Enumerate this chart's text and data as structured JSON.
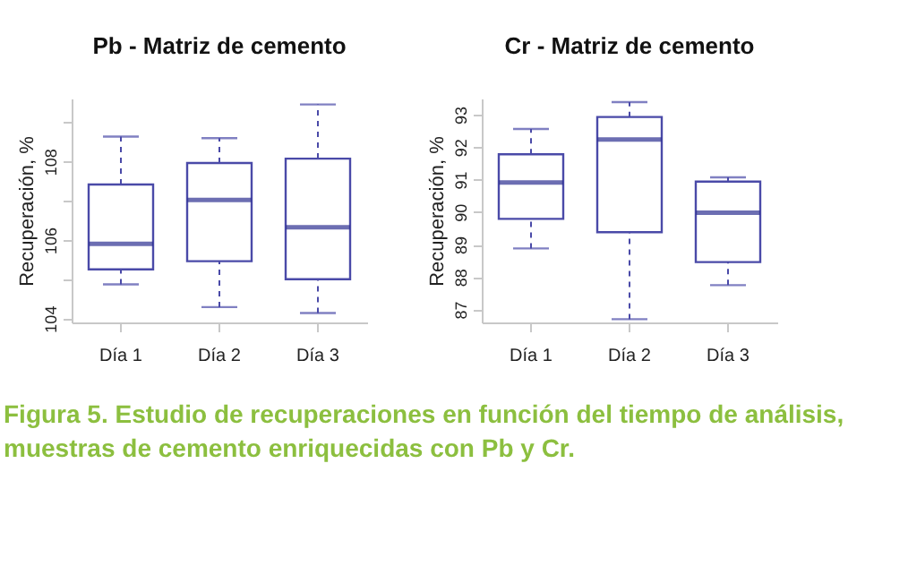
{
  "chart_data": [
    {
      "type": "box",
      "title": "Pb - Matriz de cemento",
      "ylabel": "Recuperación, %",
      "categories": [
        "Día 1",
        "Día 2",
        "Día 3"
      ],
      "series": [
        {
          "color": "#4a4aa8",
          "boxes": [
            {
              "low": 104.87,
              "q1": 105.25,
              "median": 105.9,
              "q3": 107.41,
              "high": 108.63
            },
            {
              "low": 104.29,
              "q1": 105.46,
              "median": 107.02,
              "q3": 107.96,
              "high": 108.59
            },
            {
              "low": 104.14,
              "q1": 105.0,
              "median": 106.32,
              "q3": 108.07,
              "high": 109.45
            }
          ]
        }
      ],
      "ylim": [
        103.9,
        109.6
      ],
      "yticks": [
        104,
        {
          "value": 105,
          "label": null
        },
        106,
        {
          "value": 107,
          "label": null
        },
        108,
        {
          "value": 109,
          "label": null
        }
      ],
      "grid": false,
      "annotations": [
        "Figura 5. Estudio de recuperaciones en función del tiempo de análisis, muestras de cemento enriquecidas con Pb y Cr."
      ]
    },
    {
      "type": "box",
      "title": "Cr - Matriz de cemento",
      "ylabel": "Recuperación, %",
      "categories": [
        "Día 1",
        "Día 2",
        "Día 3"
      ],
      "series": [
        {
          "color": "#4a4aa8",
          "boxes": [
            {
              "low": 88.88,
              "q1": 89.79,
              "median": 90.91,
              "q3": 91.78,
              "high": 92.56
            },
            {
              "low": 86.7,
              "q1": 89.38,
              "median": 92.24,
              "q3": 92.93,
              "high": 93.39
            },
            {
              "low": 87.75,
              "q1": 88.46,
              "median": 89.98,
              "q3": 90.94,
              "high": 91.07
            }
          ]
        }
      ],
      "ylim": [
        86.6,
        93.5
      ],
      "yticks": [
        87,
        88,
        89,
        90,
        91,
        92,
        93
      ],
      "grid": false
    }
  ]
}
